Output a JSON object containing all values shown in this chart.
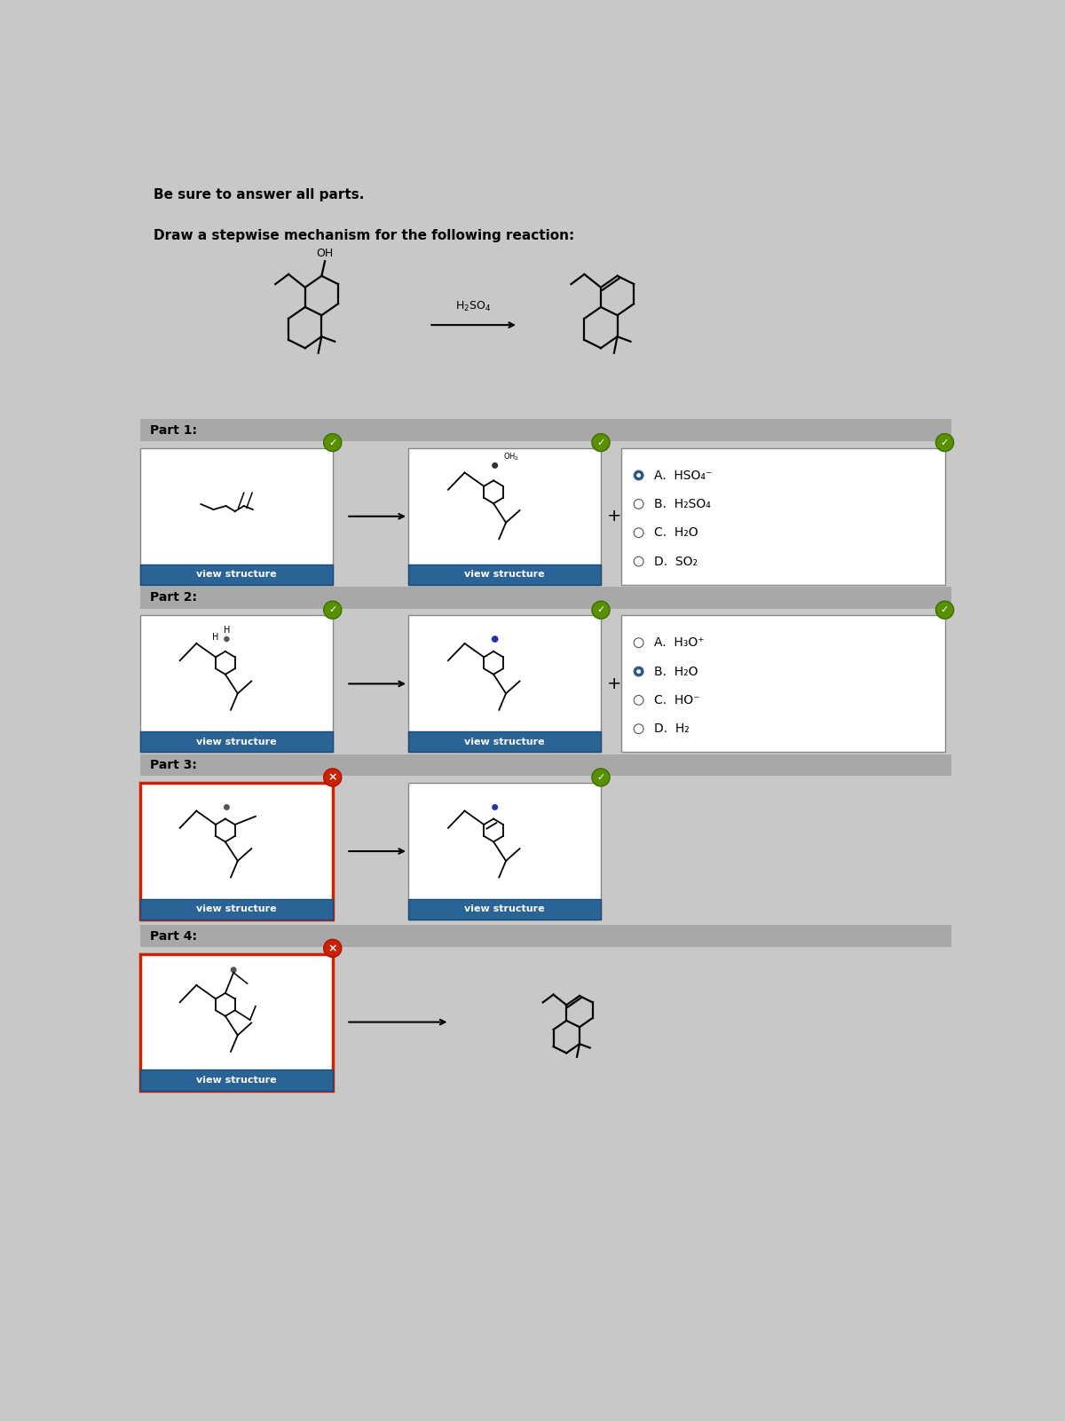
{
  "title1": "Be sure to answer all parts.",
  "title2": "Draw a stepwise mechanism for the following reaction:",
  "bg_color": "#c8c8c8",
  "white": "#ffffff",
  "blue_btn": "#2a6496",
  "green_check_color": "#5a8f00",
  "red_x_color": "#cc2200",
  "part_labels": [
    "Part 1:",
    "Part 2:",
    "Part 3:",
    "Part 4:"
  ],
  "part1_options": [
    "A.  HSO₄⁻",
    "B.  H₂SO₄",
    "C.  H₂O",
    "D.  SO₂"
  ],
  "part2_options": [
    "A.  H₃O⁺",
    "B.  H₂O",
    "C.  HO⁻",
    "D.  H₂"
  ],
  "part1_answer": 0,
  "part2_answer": 1,
  "header_color": "#a8a8a8"
}
